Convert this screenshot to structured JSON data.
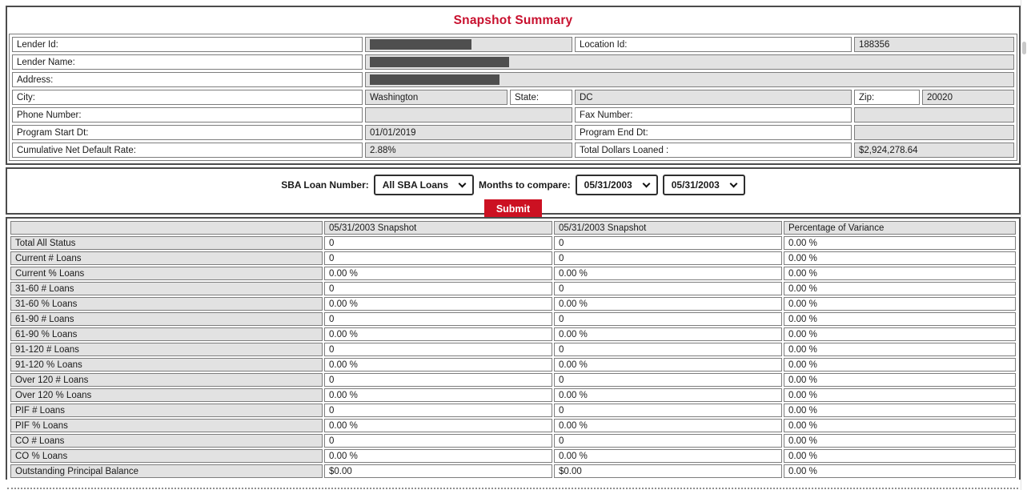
{
  "title": "Snapshot Summary",
  "colors": {
    "accent_red": "#c8102e",
    "submit_red": "#cc1122",
    "field_gray": "#e2e2e2",
    "redaction_gray": "#4f4f4f"
  },
  "info": {
    "lender_id": {
      "label": "Lender Id:",
      "redacted": true
    },
    "location_id": {
      "label": "Location Id:",
      "value": "188356"
    },
    "lender_name": {
      "label": "Lender Name:",
      "redacted": true
    },
    "address": {
      "label": "Address:",
      "redacted": true
    },
    "city": {
      "label": "City:",
      "value": "Washington"
    },
    "state": {
      "label": "State:",
      "value": "DC"
    },
    "zip": {
      "label": "Zip:",
      "value": "20020"
    },
    "phone": {
      "label": "Phone Number:",
      "value": ""
    },
    "fax": {
      "label": "Fax Number:",
      "value": ""
    },
    "program_start": {
      "label": "Program Start Dt:",
      "value": "01/01/2019"
    },
    "program_end": {
      "label": "Program End Dt:",
      "value": ""
    },
    "cum_net_default_rate": {
      "label": "Cumulative Net Default Rate:",
      "value": "2.88%"
    },
    "total_dollars_loaned": {
      "label": "Total Dollars Loaned :",
      "value": "$2,924,278.64"
    }
  },
  "filter": {
    "sba_loan_number": {
      "label": "SBA Loan Number:",
      "selected": "All SBA Loans"
    },
    "months_to_compare": {
      "label": "Months to compare:",
      "from": "05/31/2003",
      "to": "05/31/2003"
    },
    "submit_label": "Submit"
  },
  "table": {
    "headers": [
      "",
      "05/31/2003 Snapshot",
      "05/31/2003 Snapshot",
      "Percentage of Variance"
    ],
    "rows": [
      {
        "label": "Total All Status",
        "values": [
          "0",
          "0",
          "0.00 %"
        ]
      },
      {
        "label": "Current # Loans",
        "values": [
          "0",
          "0",
          "0.00 %"
        ]
      },
      {
        "label": "Current % Loans",
        "values": [
          "0.00 %",
          "0.00 %",
          "0.00 %"
        ]
      },
      {
        "label": "31-60 # Loans",
        "values": [
          "0",
          "0",
          "0.00 %"
        ]
      },
      {
        "label": "31-60 % Loans",
        "values": [
          "0.00 %",
          "0.00 %",
          "0.00 %"
        ]
      },
      {
        "label": "61-90 # Loans",
        "values": [
          "0",
          "0",
          "0.00 %"
        ]
      },
      {
        "label": "61-90 % Loans",
        "values": [
          "0.00 %",
          "0.00 %",
          "0.00 %"
        ]
      },
      {
        "label": "91-120 # Loans",
        "values": [
          "0",
          "0",
          "0.00 %"
        ]
      },
      {
        "label": "91-120 % Loans",
        "values": [
          "0.00 %",
          "0.00 %",
          "0.00 %"
        ]
      },
      {
        "label": "Over 120 # Loans",
        "values": [
          "0",
          "0",
          "0.00 %"
        ]
      },
      {
        "label": "Over 120 % Loans",
        "values": [
          "0.00 %",
          "0.00 %",
          "0.00 %"
        ]
      },
      {
        "label": "PIF # Loans",
        "values": [
          "0",
          "0",
          "0.00 %"
        ]
      },
      {
        "label": "PIF % Loans",
        "values": [
          "0.00 %",
          "0.00 %",
          "0.00 %"
        ]
      },
      {
        "label": "CO # Loans",
        "values": [
          "0",
          "0",
          "0.00 %"
        ]
      },
      {
        "label": "CO % Loans",
        "values": [
          "0.00 %",
          "0.00 %",
          "0.00 %"
        ]
      },
      {
        "label": "Outstanding Principal Balance",
        "values": [
          "$0.00",
          "$0.00",
          "0.00 %"
        ]
      }
    ]
  }
}
